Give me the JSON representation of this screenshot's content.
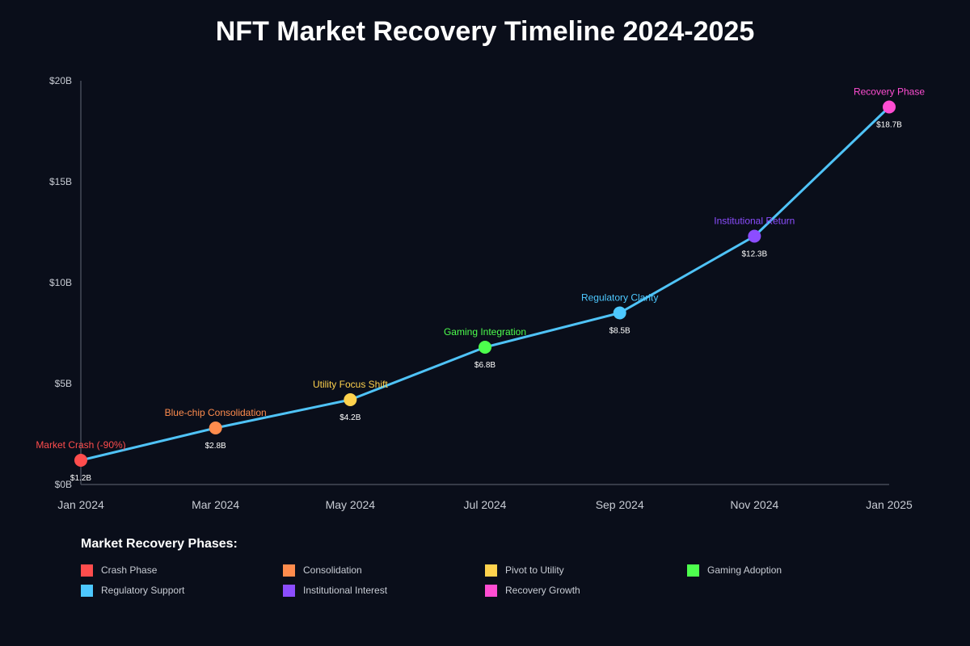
{
  "chart_data": {
    "type": "line",
    "title": "NFT Market Recovery Timeline 2024-2025",
    "xlabel": "",
    "ylabel": "",
    "ylim": [
      0,
      20
    ],
    "y_unit": "billions USD",
    "y_ticks": [
      "$0B",
      "$5B",
      "$10B",
      "$15B",
      "$20B"
    ],
    "y_tick_values": [
      0,
      5,
      10,
      15,
      20
    ],
    "categories": [
      "Jan 2024",
      "Mar 2024",
      "May 2024",
      "Jul 2024",
      "Sep 2024",
      "Nov 2024",
      "Jan 2025"
    ],
    "series": [
      {
        "color": "#4fc3f7",
        "values": [
          1.2,
          2.8,
          4.2,
          6.8,
          8.5,
          12.3,
          18.7
        ]
      }
    ],
    "points": [
      {
        "label": "Market Crash (-90%)",
        "value": 1.2,
        "value_label": "$1.2B",
        "color": "#ff4d4d"
      },
      {
        "label": "Blue-chip Consolidation",
        "value": 2.8,
        "value_label": "$2.8B",
        "color": "#ff8c4d"
      },
      {
        "label": "Utility Focus Shift",
        "value": 4.2,
        "value_label": "$4.2B",
        "color": "#ffd24d"
      },
      {
        "label": "Gaming Integration",
        "value": 6.8,
        "value_label": "$6.8B",
        "color": "#4dff4d"
      },
      {
        "label": "Regulatory Clarity",
        "value": 8.5,
        "value_label": "$8.5B",
        "color": "#4dc8ff"
      },
      {
        "label": "Institutional Return",
        "value": 12.3,
        "value_label": "$12.3B",
        "color": "#8c4dff"
      },
      {
        "label": "Recovery Phase",
        "value": 18.7,
        "value_label": "$18.7B",
        "color": "#ff4dd2"
      }
    ],
    "grid": false,
    "legend": {
      "title": "Market Recovery Phases:",
      "placement": "bottom",
      "items": [
        {
          "label": "Crash Phase",
          "color": "#ff4d4d"
        },
        {
          "label": "Consolidation",
          "color": "#ff8c4d"
        },
        {
          "label": "Pivot to Utility",
          "color": "#ffd24d"
        },
        {
          "label": "Gaming Adoption",
          "color": "#4dff4d"
        },
        {
          "label": "Regulatory Support",
          "color": "#4dc8ff"
        },
        {
          "label": "Institutional Interest",
          "color": "#8c4dff"
        },
        {
          "label": "Recovery Growth",
          "color": "#ff4dd2"
        }
      ]
    }
  },
  "colors": {
    "background": "#0a0e1a",
    "axis": "#444a57",
    "line": "#4fc3f7"
  }
}
